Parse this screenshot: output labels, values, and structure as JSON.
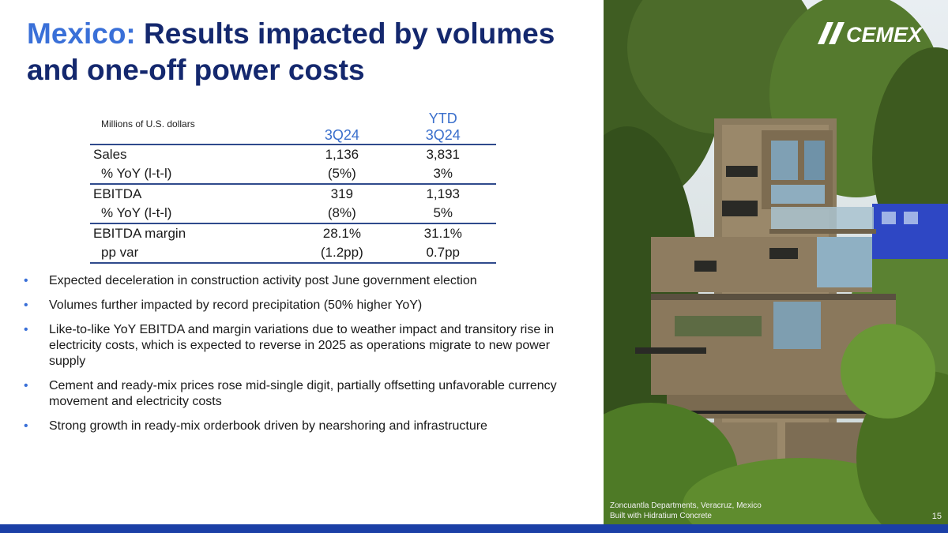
{
  "title": {
    "accent": "Mexico:",
    "rest": " Results impacted by volumes and one-off power costs"
  },
  "logo": {
    "text": "CEMEX"
  },
  "table": {
    "units": "Millions of U.S. dollars",
    "col1": "3Q24",
    "col2_top": "YTD",
    "col2": "3Q24",
    "rows": [
      {
        "label": "Sales",
        "v1": "1,136",
        "v2": "3,831"
      },
      {
        "label": "% YoY (l-t-l)",
        "v1": "(5%)",
        "v2": "3%"
      },
      {
        "label": "EBITDA",
        "v1": "319",
        "v2": "1,193"
      },
      {
        "label": "% YoY (l-t-l)",
        "v1": "(8%)",
        "v2": "5%"
      },
      {
        "label": "EBITDA margin",
        "v1": "28.1%",
        "v2": "31.1%"
      },
      {
        "label": "pp var",
        "v1": "(1.2pp)",
        "v2": "0.7pp"
      }
    ]
  },
  "bullets": [
    "Expected deceleration in construction activity post June government election",
    "Volumes further impacted by record precipitation (50% higher YoY)",
    "Like-to-like YoY EBITDA and margin variations due to weather impact and transitory rise in electricity costs, which is expected to reverse in 2025 as operations migrate to new power supply",
    "Cement and ready-mix prices rose mid-single digit, partially offsetting unfavorable currency movement and electricity costs",
    "Strong growth in ready-mix orderbook driven by nearshoring and infrastructure"
  ],
  "bullet_symbol": "•",
  "photo_caption": {
    "line1": "Zoncuantla Departments, Veracruz, Mexico",
    "line2": "Built with Hidratium Concrete"
  },
  "page_number": "15",
  "colors": {
    "title_navy": "#14286e",
    "accent_blue": "#3a70d8",
    "bar_blue": "#1b3fa6"
  }
}
